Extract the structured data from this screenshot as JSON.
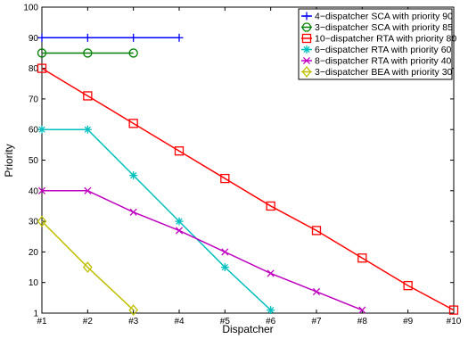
{
  "chart_data": {
    "type": "line",
    "xlabel": "Dispatcher",
    "ylabel": "Priority",
    "x_ticks": [
      "#1",
      "#2",
      "#3",
      "#4",
      "#5",
      "#6",
      "#7",
      "#8",
      "#9",
      "#10"
    ],
    "y_ticks": [
      "1",
      "10",
      "20",
      "30",
      "40",
      "50",
      "60",
      "70",
      "80",
      "90",
      "100"
    ],
    "xlim": [
      1,
      10
    ],
    "ylim": [
      0,
      100
    ],
    "grid": false,
    "legend_position": "top-right",
    "series": [
      {
        "name": "4−dispatcher SCA with priority 90",
        "color": "#0000ff",
        "marker": "plus",
        "x": [
          1,
          2,
          3,
          4
        ],
        "y": [
          90,
          90,
          90,
          90
        ]
      },
      {
        "name": "3−dispatcher SCA with priority 85",
        "color": "#008000",
        "marker": "circle",
        "x": [
          1,
          2,
          3
        ],
        "y": [
          85,
          85,
          85
        ]
      },
      {
        "name": "10−dispatcher RTA with priority 80",
        "color": "#ff0000",
        "marker": "square",
        "x": [
          1,
          2,
          3,
          4,
          5,
          6,
          7,
          8,
          9,
          10
        ],
        "y": [
          80,
          71,
          62,
          53,
          44,
          35,
          27,
          18,
          9,
          1
        ]
      },
      {
        "name": "6−dispatcher RTA with priority 60",
        "color": "#00bfbf",
        "marker": "asterisk",
        "x": [
          1,
          2,
          3,
          4,
          5,
          6
        ],
        "y": [
          60,
          60,
          45,
          30,
          15,
          1
        ]
      },
      {
        "name": "8−dispatcher RTA with priority 40",
        "color": "#bf00bf",
        "marker": "x",
        "x": [
          1,
          2,
          3,
          4,
          5,
          6,
          7,
          8
        ],
        "y": [
          40,
          40,
          33,
          27,
          20,
          13,
          7,
          1
        ]
      },
      {
        "name": "3−dispatcher BEA with priority 30",
        "color": "#bfbf00",
        "marker": "diamond",
        "x": [
          1,
          2,
          3
        ],
        "y": [
          30,
          15,
          1
        ]
      }
    ]
  }
}
